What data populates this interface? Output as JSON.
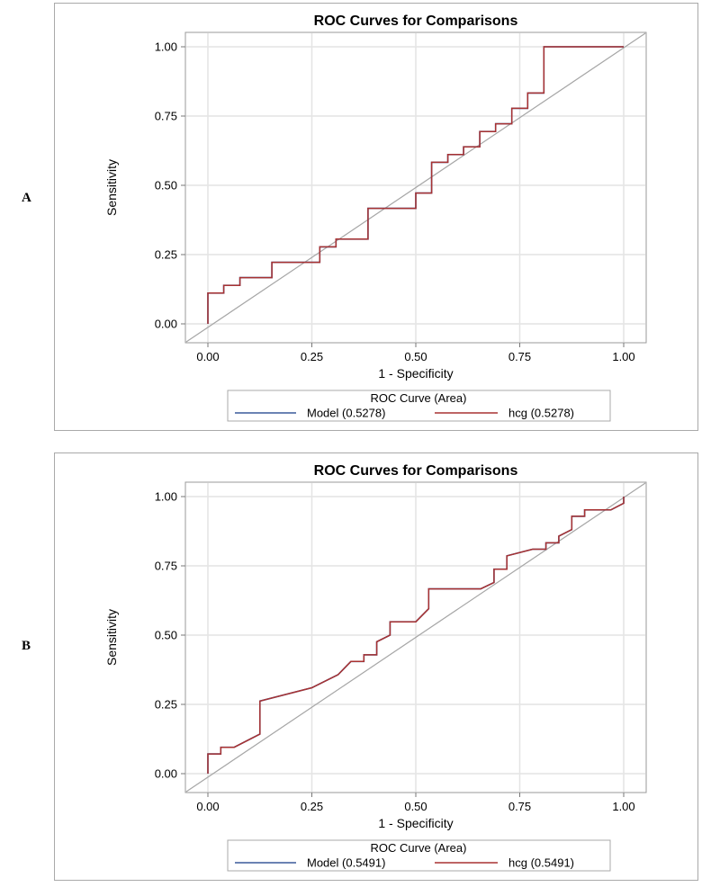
{
  "chart_data": [
    {
      "panel_label": "A",
      "type": "line",
      "title": "ROC Curves for Comparisons",
      "xlabel": "1 - Specificity",
      "ylabel": "Sensitivity",
      "xlim": [
        0,
        1
      ],
      "ylim": [
        0,
        1
      ],
      "xticks": [
        "0.00",
        "0.25",
        "0.50",
        "0.75",
        "1.00"
      ],
      "yticks": [
        "0.00",
        "0.25",
        "0.50",
        "0.75",
        "1.00"
      ],
      "grid": true,
      "legend_title": "ROC Curve (Area)",
      "legend_position": "bottom",
      "series": [
        {
          "name": "Model",
          "area_label": "(0.5278)",
          "color": "#3a5a9a",
          "points": [
            [
              0,
              0
            ],
            [
              0,
              0.111
            ],
            [
              0.038,
              0.111
            ],
            [
              0.038,
              0.139
            ],
            [
              0.077,
              0.139
            ],
            [
              0.077,
              0.167
            ],
            [
              0.154,
              0.167
            ],
            [
              0.154,
              0.222
            ],
            [
              0.269,
              0.222
            ],
            [
              0.269,
              0.278
            ],
            [
              0.308,
              0.278
            ],
            [
              0.308,
              0.306
            ],
            [
              0.385,
              0.306
            ],
            [
              0.385,
              0.417
            ],
            [
              0.5,
              0.417
            ],
            [
              0.5,
              0.472
            ],
            [
              0.538,
              0.472
            ],
            [
              0.538,
              0.583
            ],
            [
              0.577,
              0.583
            ],
            [
              0.577,
              0.611
            ],
            [
              0.615,
              0.611
            ],
            [
              0.615,
              0.639
            ],
            [
              0.654,
              0.639
            ],
            [
              0.654,
              0.694
            ],
            [
              0.692,
              0.694
            ],
            [
              0.692,
              0.722
            ],
            [
              0.731,
              0.722
            ],
            [
              0.731,
              0.778
            ],
            [
              0.769,
              0.778
            ],
            [
              0.769,
              0.833
            ],
            [
              0.808,
              0.833
            ],
            [
              0.808,
              1.0
            ],
            [
              1.0,
              1.0
            ]
          ]
        },
        {
          "name": "hcg",
          "area_label": "(0.5278)",
          "color": "#a83232",
          "points": [
            [
              0,
              0
            ],
            [
              0,
              0.111
            ],
            [
              0.038,
              0.111
            ],
            [
              0.038,
              0.139
            ],
            [
              0.077,
              0.139
            ],
            [
              0.077,
              0.167
            ],
            [
              0.154,
              0.167
            ],
            [
              0.154,
              0.222
            ],
            [
              0.269,
              0.222
            ],
            [
              0.269,
              0.278
            ],
            [
              0.308,
              0.278
            ],
            [
              0.308,
              0.306
            ],
            [
              0.385,
              0.306
            ],
            [
              0.385,
              0.417
            ],
            [
              0.5,
              0.417
            ],
            [
              0.5,
              0.472
            ],
            [
              0.538,
              0.472
            ],
            [
              0.538,
              0.583
            ],
            [
              0.577,
              0.583
            ],
            [
              0.577,
              0.611
            ],
            [
              0.615,
              0.611
            ],
            [
              0.615,
              0.639
            ],
            [
              0.654,
              0.639
            ],
            [
              0.654,
              0.694
            ],
            [
              0.692,
              0.694
            ],
            [
              0.692,
              0.722
            ],
            [
              0.731,
              0.722
            ],
            [
              0.731,
              0.778
            ],
            [
              0.769,
              0.778
            ],
            [
              0.769,
              0.833
            ],
            [
              0.808,
              0.833
            ],
            [
              0.808,
              1.0
            ],
            [
              1.0,
              1.0
            ]
          ]
        }
      ]
    },
    {
      "panel_label": "B",
      "type": "line",
      "title": "ROC Curves for Comparisons",
      "xlabel": "1 - Specificity",
      "ylabel": "Sensitivity",
      "xlim": [
        0,
        1
      ],
      "ylim": [
        0,
        1
      ],
      "xticks": [
        "0.00",
        "0.25",
        "0.50",
        "0.75",
        "1.00"
      ],
      "yticks": [
        "0.00",
        "0.25",
        "0.50",
        "0.75",
        "1.00"
      ],
      "grid": true,
      "legend_title": "ROC Curve (Area)",
      "legend_position": "bottom",
      "series": [
        {
          "name": "Model",
          "area_label": "(0.5491)",
          "color": "#3a5a9a",
          "points": [
            [
              0,
              0
            ],
            [
              0,
              0.071
            ],
            [
              0.031,
              0.071
            ],
            [
              0.031,
              0.095
            ],
            [
              0.063,
              0.095
            ],
            [
              0.125,
              0.143
            ],
            [
              0.125,
              0.262
            ],
            [
              0.25,
              0.31
            ],
            [
              0.313,
              0.357
            ],
            [
              0.344,
              0.405
            ],
            [
              0.375,
              0.405
            ],
            [
              0.375,
              0.429
            ],
            [
              0.406,
              0.429
            ],
            [
              0.406,
              0.476
            ],
            [
              0.438,
              0.5
            ],
            [
              0.438,
              0.548
            ],
            [
              0.5,
              0.548
            ],
            [
              0.531,
              0.595
            ],
            [
              0.531,
              0.667
            ],
            [
              0.656,
              0.667
            ],
            [
              0.688,
              0.69
            ],
            [
              0.688,
              0.738
            ],
            [
              0.719,
              0.738
            ],
            [
              0.719,
              0.786
            ],
            [
              0.781,
              0.81
            ],
            [
              0.813,
              0.81
            ],
            [
              0.813,
              0.833
            ],
            [
              0.844,
              0.833
            ],
            [
              0.844,
              0.857
            ],
            [
              0.875,
              0.881
            ],
            [
              0.875,
              0.929
            ],
            [
              0.906,
              0.929
            ],
            [
              0.906,
              0.952
            ],
            [
              0.969,
              0.952
            ],
            [
              1.0,
              0.976
            ],
            [
              1.0,
              1.0
            ]
          ]
        },
        {
          "name": "hcg",
          "area_label": "(0.5491)",
          "color": "#a83232",
          "points": [
            [
              0,
              0
            ],
            [
              0,
              0.071
            ],
            [
              0.031,
              0.071
            ],
            [
              0.031,
              0.095
            ],
            [
              0.063,
              0.095
            ],
            [
              0.125,
              0.143
            ],
            [
              0.125,
              0.262
            ],
            [
              0.25,
              0.31
            ],
            [
              0.313,
              0.357
            ],
            [
              0.344,
              0.405
            ],
            [
              0.375,
              0.405
            ],
            [
              0.375,
              0.429
            ],
            [
              0.406,
              0.429
            ],
            [
              0.406,
              0.476
            ],
            [
              0.438,
              0.5
            ],
            [
              0.438,
              0.548
            ],
            [
              0.5,
              0.548
            ],
            [
              0.531,
              0.595
            ],
            [
              0.531,
              0.667
            ],
            [
              0.656,
              0.667
            ],
            [
              0.688,
              0.69
            ],
            [
              0.688,
              0.738
            ],
            [
              0.719,
              0.738
            ],
            [
              0.719,
              0.786
            ],
            [
              0.781,
              0.81
            ],
            [
              0.813,
              0.81
            ],
            [
              0.813,
              0.833
            ],
            [
              0.844,
              0.833
            ],
            [
              0.844,
              0.857
            ],
            [
              0.875,
              0.881
            ],
            [
              0.875,
              0.929
            ],
            [
              0.906,
              0.929
            ],
            [
              0.906,
              0.952
            ],
            [
              0.969,
              0.952
            ],
            [
              1.0,
              0.976
            ],
            [
              1.0,
              1.0
            ]
          ]
        }
      ]
    }
  ]
}
